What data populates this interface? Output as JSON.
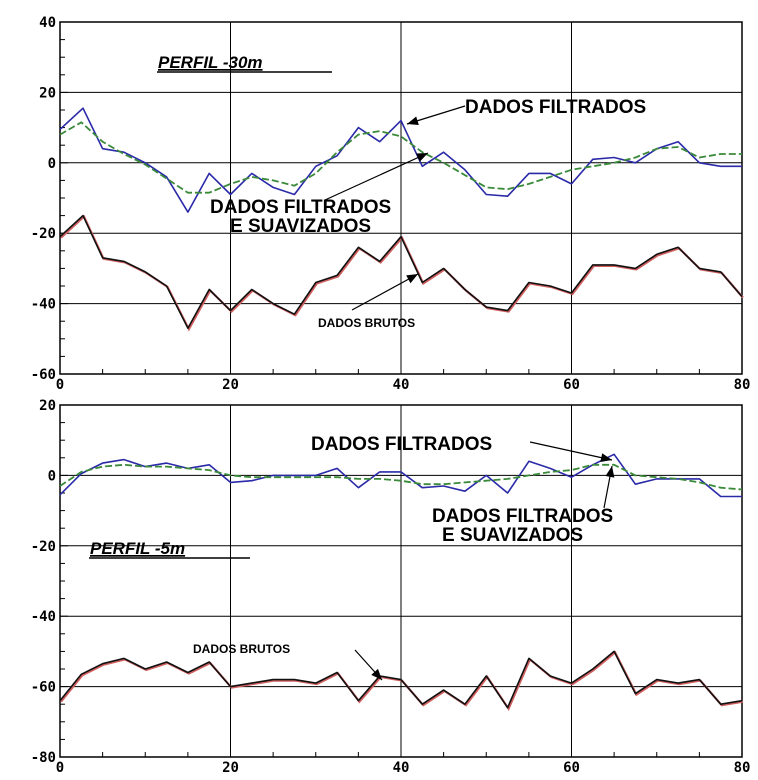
{
  "chart_data": [
    {
      "type": "line",
      "panel_label": "PERFIL -30m",
      "xlim": [
        0,
        80
      ],
      "ylim": [
        -60,
        40
      ],
      "xticks": [
        0,
        20,
        40,
        60,
        80
      ],
      "yticks": [
        -60,
        -40,
        -20,
        0,
        20,
        40
      ],
      "grid": true,
      "series": [
        {
          "name": "DADOS FILTRADOS",
          "color": "#2a2aa8",
          "x": [
            0,
            2.7,
            5,
            7.5,
            10,
            12.5,
            15,
            17.5,
            20,
            22.5,
            25,
            27.5,
            30,
            32.5,
            35,
            37.5,
            40,
            42.5,
            45,
            47.5,
            50,
            52.5,
            55,
            57.5,
            60,
            62.5,
            65,
            67.5,
            70,
            72.5,
            75,
            77.5,
            80
          ],
          "y": [
            9.5,
            15.5,
            4,
            3,
            0,
            -4,
            -14,
            -3,
            -9,
            -3,
            -7,
            -9,
            -1,
            2,
            10,
            6,
            12,
            -1,
            3,
            -2,
            -9,
            -9.5,
            -3,
            -3,
            -6,
            1,
            1.5,
            0,
            4,
            6,
            0,
            -1,
            -1
          ]
        },
        {
          "name": "DADOS FILTRADOS E SUAVIZADOS",
          "color": "#3a8a3a",
          "dashed": true,
          "x": [
            0,
            2.5,
            5,
            7.5,
            10,
            12.5,
            15,
            17.5,
            20,
            22.5,
            25,
            27.5,
            30,
            32.5,
            35,
            37.5,
            40,
            42.5,
            45,
            47.5,
            50,
            52.5,
            55,
            57.5,
            60,
            62.5,
            65,
            67.5,
            70,
            72.5,
            75,
            77.5,
            80
          ],
          "y": [
            8,
            11.5,
            6,
            2.5,
            -0.5,
            -4.5,
            -8.5,
            -8.5,
            -6,
            -4,
            -5,
            -6.5,
            -3,
            3,
            8,
            9,
            7.5,
            3,
            0,
            -3.5,
            -7,
            -7.5,
            -6,
            -4,
            -2,
            -1,
            0,
            1.5,
            4,
            4.5,
            1.5,
            2.5,
            2.5
          ]
        },
        {
          "name": "DADOS BRUTOS",
          "color": "#111111",
          "x": [
            0,
            2.7,
            5,
            7.5,
            10,
            12.5,
            15,
            17.5,
            20,
            22.5,
            25,
            27.5,
            30,
            32.5,
            35,
            37.5,
            40,
            42.5,
            45,
            47.5,
            50,
            52.5,
            55,
            57.5,
            60,
            62.5,
            65,
            67.5,
            70,
            72.5,
            75,
            77.5,
            80
          ],
          "y": [
            -21,
            -15,
            -27,
            -28,
            -31,
            -35,
            -47,
            -36,
            -42,
            -36,
            -40,
            -43,
            -34,
            -32,
            -24,
            -28,
            -21,
            -34,
            -30,
            -36,
            -41,
            -42,
            -34,
            -35,
            -37,
            -29,
            -29,
            -30,
            -26,
            -24,
            -30,
            -31,
            -38
          ]
        }
      ],
      "annotations": [
        {
          "text": "DADOS FILTRADOS",
          "x": 60,
          "y": 15.5
        },
        {
          "text": "DADOS FILTRADOS",
          "x": 30,
          "y": -12.5
        },
        {
          "text": "E SUAVIZADOS",
          "x": 30,
          "y": -18
        },
        {
          "text": "DADOS BRUTOS",
          "x": 40,
          "y": -46.5
        }
      ]
    },
    {
      "type": "line",
      "panel_label": "PERFIL -5m",
      "xlim": [
        0,
        80
      ],
      "ylim": [
        -80,
        20
      ],
      "xticks": [
        0,
        20,
        40,
        60,
        80
      ],
      "yticks": [
        -80,
        -60,
        -40,
        -20,
        0,
        20
      ],
      "grid": true,
      "series": [
        {
          "name": "DADOS FILTRADOS",
          "color": "#2a2aa8",
          "x": [
            0,
            2.5,
            5,
            7.5,
            10,
            12.5,
            15,
            17.5,
            20,
            22.5,
            25,
            27.5,
            30,
            32.5,
            35,
            37.5,
            40,
            42.5,
            45,
            47.5,
            50,
            52.5,
            55,
            57.5,
            60,
            62.5,
            65,
            67.5,
            70,
            72.5,
            75,
            77.5,
            80
          ],
          "y": [
            -5.5,
            0.5,
            3.5,
            4.5,
            2.5,
            3.5,
            2,
            3,
            -2,
            -1.5,
            0,
            0,
            0,
            2,
            -3.5,
            1,
            1,
            -3.5,
            -3,
            -4.5,
            0,
            -5,
            4,
            2,
            -0.5,
            3,
            6,
            -2.5,
            -1,
            -1,
            -1,
            -6,
            -6
          ]
        },
        {
          "name": "DADOS FILTRADOS E SUAVIZADOS",
          "color": "#3a8a3a",
          "dashed": true,
          "x": [
            0,
            2.5,
            5,
            7.5,
            10,
            12.5,
            15,
            17.5,
            20,
            22.5,
            25,
            27.5,
            30,
            32.5,
            35,
            37.5,
            40,
            42.5,
            45,
            47.5,
            50,
            52.5,
            55,
            57.5,
            60,
            62.5,
            65,
            67.5,
            70,
            72.5,
            75,
            77.5,
            80
          ],
          "y": [
            -3,
            1,
            2.5,
            3,
            2.5,
            2.5,
            2,
            1.5,
            0,
            -0.5,
            -0.5,
            -0.5,
            -0.5,
            -0.5,
            -1,
            -1,
            -1.5,
            -2.5,
            -2.5,
            -2,
            -1.5,
            -1,
            0,
            1,
            1.5,
            3,
            3,
            0,
            -0.5,
            -1,
            -2,
            -3.5,
            -4
          ]
        },
        {
          "name": "DADOS BRUTOS",
          "color": "#111111",
          "x": [
            0,
            2.5,
            5,
            7.5,
            10,
            12.5,
            15,
            17.5,
            20,
            22.5,
            25,
            27.5,
            30,
            32.5,
            35,
            37.5,
            40,
            42.5,
            45,
            47.5,
            50,
            52.5,
            55,
            57.5,
            60,
            62.5,
            65,
            67.5,
            70,
            72.5,
            75,
            77.5,
            80
          ],
          "y": [
            -64,
            -56.5,
            -53.5,
            -52,
            -55,
            -53,
            -56,
            -53,
            -60,
            -59,
            -58,
            -58,
            -59,
            -56,
            -64,
            -57,
            -58,
            -65,
            -61,
            -65,
            -57,
            -66,
            -52,
            -57,
            -59,
            -55,
            -50,
            -62,
            -58,
            -59,
            -58,
            -65,
            -64
          ]
        }
      ],
      "annotations": [
        {
          "text": "DADOS FILTRADOS",
          "x": 42,
          "y": 9.5
        },
        {
          "text": "DADOS FILTRADOS",
          "x": 65,
          "y": -12
        },
        {
          "text": "E SUAVIZADOS",
          "x": 65,
          "y": -17.5
        },
        {
          "text": "DADOS BRUTOS",
          "x": 24,
          "y": -51
        }
      ]
    }
  ]
}
